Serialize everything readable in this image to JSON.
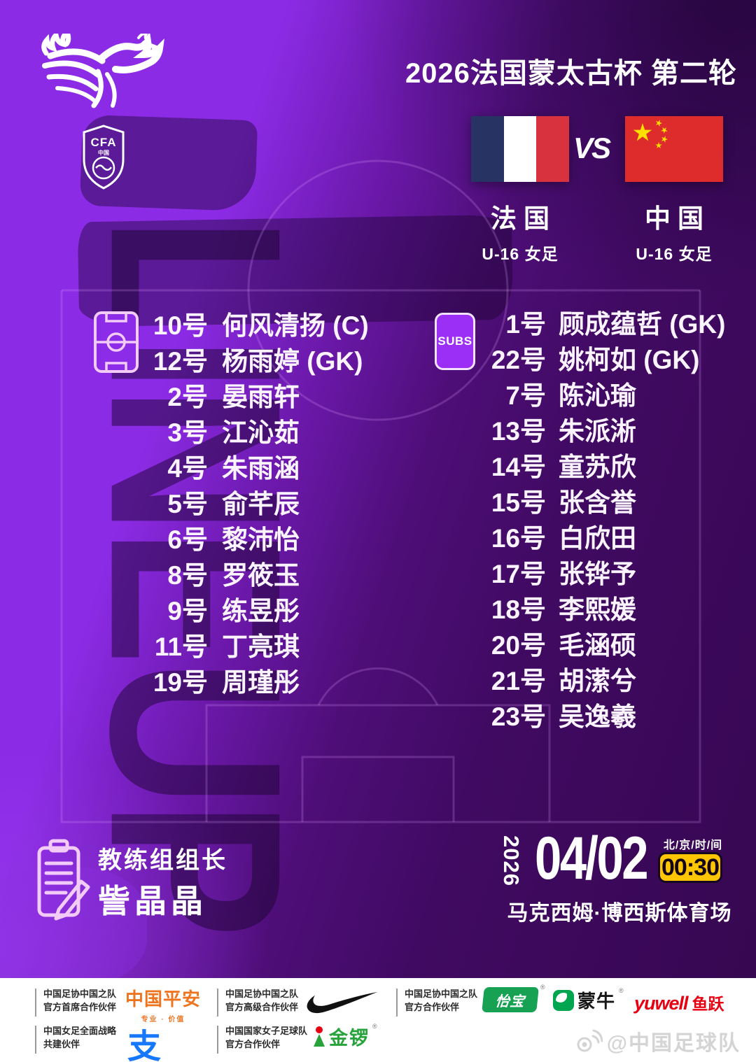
{
  "background": {
    "watermark_text": "LINEUP"
  },
  "header": {
    "crest_label": "CFA",
    "crest_sub": "中国",
    "title": "2026法国蒙太古杯 第二轮",
    "vs": "VS",
    "home": {
      "name": "法国",
      "sub": "U-16 女足"
    },
    "away": {
      "name": "中国",
      "sub": "U-16 女足"
    }
  },
  "lineup": {
    "starters": [
      {
        "num": "10号",
        "name": "何风清扬 (C)"
      },
      {
        "num": "12号",
        "name": "杨雨婷 (GK)"
      },
      {
        "num": "2号",
        "name": "晏雨轩"
      },
      {
        "num": "3号",
        "name": "江沁茹"
      },
      {
        "num": "4号",
        "name": "朱雨涵"
      },
      {
        "num": "5号",
        "name": "俞芊辰"
      },
      {
        "num": "6号",
        "name": "黎沛怡"
      },
      {
        "num": "8号",
        "name": "罗筱玉"
      },
      {
        "num": "9号",
        "name": "练昱彤"
      },
      {
        "num": "11号",
        "name": "丁亮琪"
      },
      {
        "num": "19号",
        "name": "周瑾彤"
      }
    ],
    "subs_label": "SUBS",
    "subs": [
      {
        "num": "1号",
        "name": "顾成蕴哲 (GK)"
      },
      {
        "num": "22号",
        "name": "姚柯如 (GK)"
      },
      {
        "num": "7号",
        "name": "陈沁瑜"
      },
      {
        "num": "13号",
        "name": "朱派淅"
      },
      {
        "num": "14号",
        "name": "童苏欣"
      },
      {
        "num": "15号",
        "name": "张含誉"
      },
      {
        "num": "16号",
        "name": "白欣田"
      },
      {
        "num": "17号",
        "name": "张铧予"
      },
      {
        "num": "18号",
        "name": "李熙媛"
      },
      {
        "num": "20号",
        "name": "毛涵硕"
      },
      {
        "num": "21号",
        "name": "胡潆兮"
      },
      {
        "num": "23号",
        "name": "吴逸羲"
      }
    ]
  },
  "coach": {
    "role": "教练组组长",
    "name": "訾晶晶"
  },
  "schedule": {
    "year": "2026",
    "date": "04/02",
    "timezone": "北/京/时/间",
    "time": "00:30",
    "venue": "马克西姆·博西斯体育场"
  },
  "footer": {
    "p1": {
      "line1": "中国足协中国之队",
      "line2": "官方首席合作伙伴",
      "brand": "中国平安",
      "brand_sub": "专业 · 价值"
    },
    "p2": {
      "line1": "中国足协中国之队",
      "line2": "官方高级合作伙伴"
    },
    "p3": {
      "line1": "中国足协中国之队",
      "line2": "官方合作伙伴",
      "yibao": "怡宝",
      "mengniu": "蒙牛",
      "yuwell_en": "yuwell",
      "yuwell_cn": "鱼跃",
      "reg": "®"
    },
    "p4": {
      "line1": "中国女足全面战略",
      "line2": "共建伙伴",
      "alipay": "支"
    },
    "p5": {
      "line1": "中国国家女子足球队",
      "line2": "官方合作伙伴",
      "jinluo": "金锣",
      "reg": "®"
    },
    "watermark": "@中国足球队"
  },
  "colors": {
    "accent_purple": "#8C2BE6",
    "dark_purple": "#360750",
    "subs_badge": "#9B2FF5",
    "time_badge_yellow": "#FFC600",
    "france_blue": "#273463",
    "flag_red": "#D8323E",
    "china_red": "#DE2B2B",
    "china_yellow": "#FFDE00",
    "pingan_orange": "#EE7420",
    "yibao_green": "#17A253",
    "mengniu_green": "#00A64F",
    "yuwell_red": "#E60012",
    "alipay_blue": "#1677FF",
    "jinluo_green": "#28A33B"
  }
}
